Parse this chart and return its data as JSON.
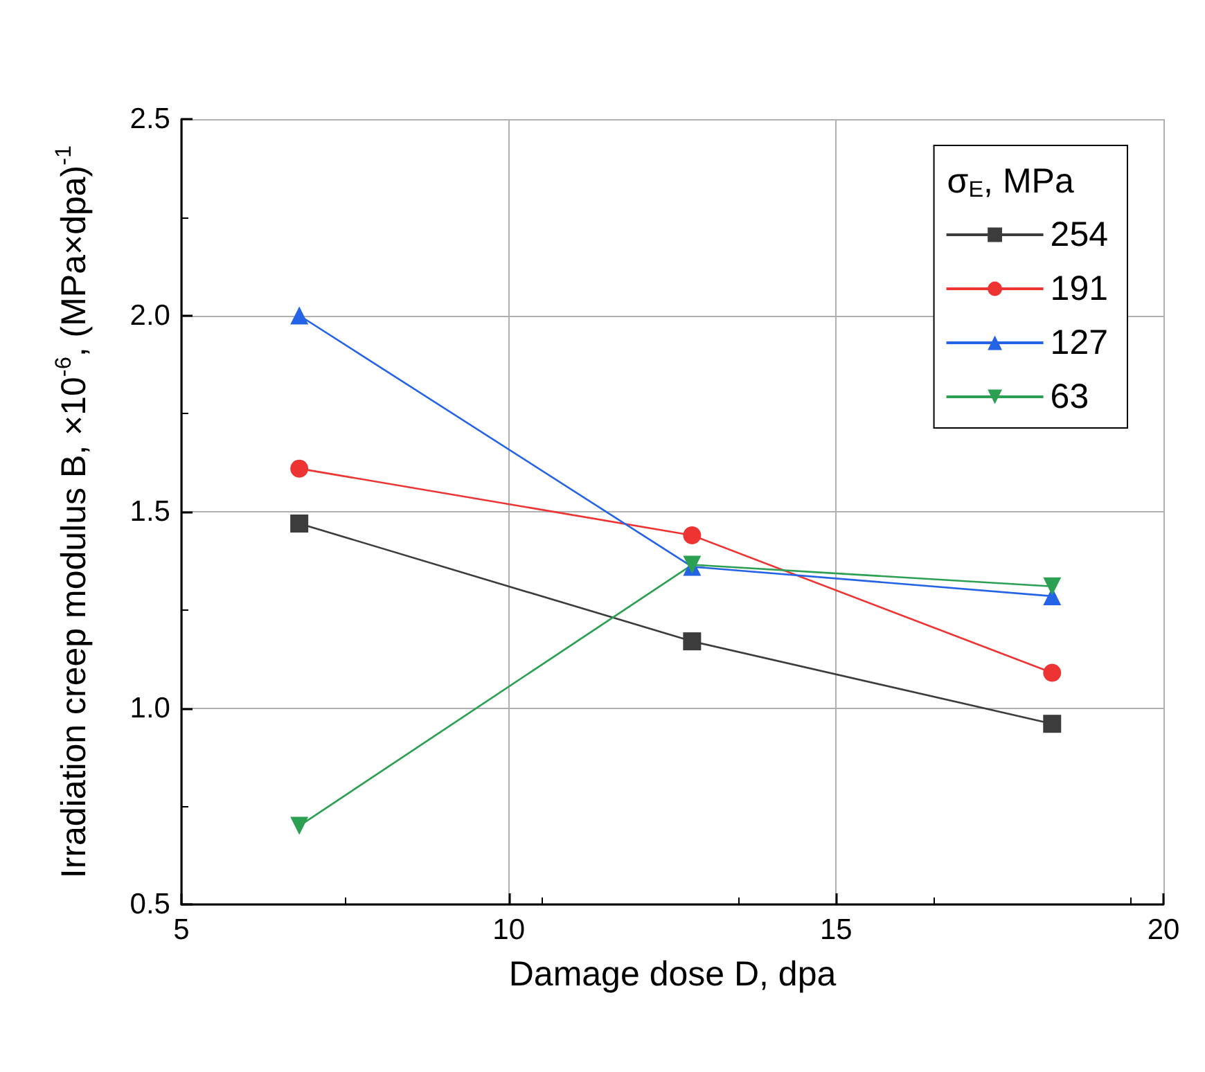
{
  "chart_data": {
    "type": "line",
    "xlabel": "Damage dose D, dpa",
    "ylabel": "Irradiation creep modulus B, ×10$^{-6}$, (MPa×dpa)$^{-1}$",
    "legend_title": "σ$_{E}$, MPa",
    "x": [
      6.8,
      12.8,
      18.3
    ],
    "series": [
      {
        "name": "254",
        "color": "#3c3c3c",
        "marker": "square",
        "values": [
          1.47,
          1.17,
          0.96
        ]
      },
      {
        "name": "191",
        "color": "#ee3333",
        "marker": "circle",
        "values": [
          1.61,
          1.44,
          1.09
        ]
      },
      {
        "name": "127",
        "color": "#2563e6",
        "marker": "triangle",
        "values": [
          2.0,
          1.36,
          1.285
        ]
      },
      {
        "name": "63",
        "color": "#2ca052",
        "marker": "triangle-down",
        "values": [
          0.7,
          1.365,
          1.31
        ]
      }
    ],
    "xlim": [
      5,
      20
    ],
    "xticks": [
      5,
      10,
      15,
      20
    ],
    "ylim": [
      0.5,
      2.5
    ],
    "yticks": [
      0.5,
      {
        "value": 1,
        "label": "1.0"
      },
      1.5,
      {
        "value": 2,
        "label": "2.0"
      },
      2.5
    ],
    "grid": true,
    "legend": "top right",
    "line_style": "solid"
  }
}
